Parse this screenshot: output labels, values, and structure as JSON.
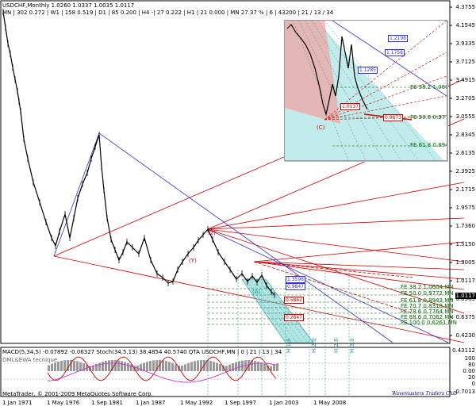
{
  "header": {
    "line1": "USDCHF,Monthly   1.0260  1.0337  1.0035  1.0117",
    "line2": "MN | 302   0.272 | W1 | 158   0.519 | D1 | 85   0.200 | H4 -| 27   0.222 | H1 | 21   0.000 | MN  27.37 % | 6 | 43200 | 21 / 13 / 34"
  },
  "price_axis": {
    "labels": [
      "4.3755",
      "4.1545",
      "3.9335",
      "3.7125",
      "3.4915",
      "3.2705",
      "3.0555",
      "2.8345",
      "2.6135",
      "2.3925",
      "2.1715",
      "1.9575",
      "1.7360",
      "1.5150",
      "1.3005",
      "1.0117",
      "0.8585",
      "0.6375",
      "0.4230"
    ],
    "current_price": "1.0117"
  },
  "indicator": {
    "title": "MACD(5,34,5)  -0.07892  -0.06327   Stoch(34,5,13)  38.4854  40.5740   QTA  USDCHF,MN | 0 | 21 | 13 | 34",
    "subtitle": "DML&EWA tecnique",
    "axis": [
      "0.43112",
      "100",
      "80",
      "0.00",
      "20",
      "0",
      "-0.7013"
    ],
    "vlabels": [
      "H 1.6",
      "H 2.0",
      "H 2.6",
      "H 3.0"
    ]
  },
  "time_axis": [
    "1 Jan 1971",
    "1 May 1976",
    "1 Sep 1981",
    "1 Jan 1987",
    "1 May 1992",
    "1 Sep 1997",
    "1 Jan 2003",
    "1 May 2008"
  ],
  "footer": {
    "copyright": "MetaTrader, © 2001-2009 MetaQuotes Software Corp.",
    "signature": "Wavemasters Traders Club"
  },
  "fib_levels": [
    "FE  38.2  1.0604 MN",
    "FE  50.0  0.9772 MN",
    "FE  61.8  0.8943 MN",
    "FE  70.7  0.8318 MN",
    "FE  78.6  0.7764 MN",
    "FE  88.6  0.7062 MN",
    "FE 100.0  0.6261 MN"
  ],
  "main_boxes": [
    "1.3598",
    "0.9847",
    "0.5862",
    "0.2847"
  ],
  "main_annotations": [
    "(2)",
    "(Y)",
    "(A)"
  ],
  "inset": {
    "boxes_blue": [
      "1.2198",
      "1.1758",
      "1.1285"
    ],
    "boxes_red": [
      "1.0137",
      "0.9873"
    ],
    "fe_labels": [
      "FE  38.2  1.060",
      "FE  50.0  0.977",
      "FE  61.8  0.894"
    ],
    "annotation": "(C)"
  },
  "colors": {
    "up_blue": "#3333cc",
    "red_line": "#cc0000",
    "cyan_fill": "#66cccc",
    "pink_fill": "#f4a0a0",
    "fib_green": "#006400",
    "macd_hist": "#999999",
    "stoch_red": "#cc0000",
    "stoch_magenta": "#cc33cc"
  }
}
